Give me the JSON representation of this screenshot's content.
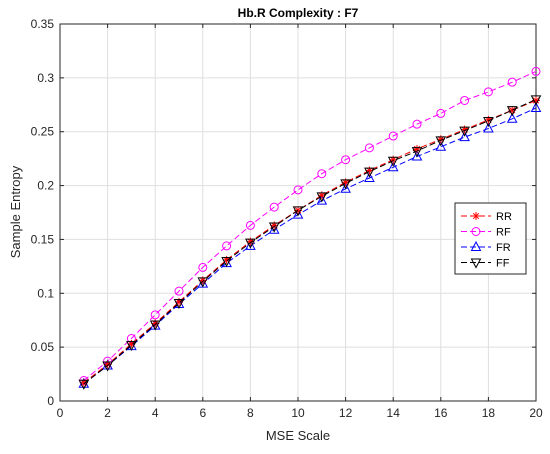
{
  "chart_data": {
    "type": "line",
    "title": "Hb.R Complexity : F7",
    "xlabel": "MSE Scale",
    "ylabel": "Sample Entropy",
    "xlim": [
      0,
      20
    ],
    "ylim": [
      0,
      0.35
    ],
    "xticks": [
      "0",
      "2",
      "4",
      "6",
      "8",
      "10",
      "12",
      "14",
      "16",
      "18",
      "20"
    ],
    "yticks": [
      "0",
      "0.05",
      "0.1",
      "0.15",
      "0.2",
      "0.25",
      "0.3",
      "0.35"
    ],
    "grid": true,
    "legend_position": "right",
    "x": [
      1,
      2,
      3,
      4,
      5,
      6,
      7,
      8,
      9,
      10,
      11,
      12,
      13,
      14,
      15,
      16,
      17,
      18,
      19,
      20
    ],
    "series": [
      {
        "name": "RR",
        "color": "#ff0000",
        "marker": "star",
        "values": [
          0.017,
          0.034,
          0.053,
          0.072,
          0.092,
          0.112,
          0.131,
          0.148,
          0.163,
          0.177,
          0.191,
          0.203,
          0.214,
          0.224,
          0.234,
          0.243,
          0.252,
          0.261,
          0.27,
          0.279
        ]
      },
      {
        "name": "RF",
        "color": "#ff00ff",
        "marker": "circle",
        "values": [
          0.019,
          0.037,
          0.058,
          0.08,
          0.102,
          0.124,
          0.144,
          0.163,
          0.18,
          0.196,
          0.211,
          0.224,
          0.235,
          0.246,
          0.257,
          0.267,
          0.279,
          0.287,
          0.296,
          0.306
        ]
      },
      {
        "name": "FR",
        "color": "#0000ff",
        "marker": "triangle-up",
        "values": [
          0.016,
          0.033,
          0.051,
          0.07,
          0.09,
          0.109,
          0.128,
          0.144,
          0.159,
          0.173,
          0.186,
          0.197,
          0.207,
          0.217,
          0.227,
          0.236,
          0.245,
          0.253,
          0.262,
          0.272
        ]
      },
      {
        "name": "FF",
        "color": "#000000",
        "marker": "triangle-down",
        "values": [
          0.016,
          0.033,
          0.052,
          0.071,
          0.091,
          0.111,
          0.13,
          0.147,
          0.162,
          0.177,
          0.19,
          0.202,
          0.213,
          0.223,
          0.232,
          0.242,
          0.251,
          0.26,
          0.27,
          0.28
        ]
      }
    ]
  }
}
